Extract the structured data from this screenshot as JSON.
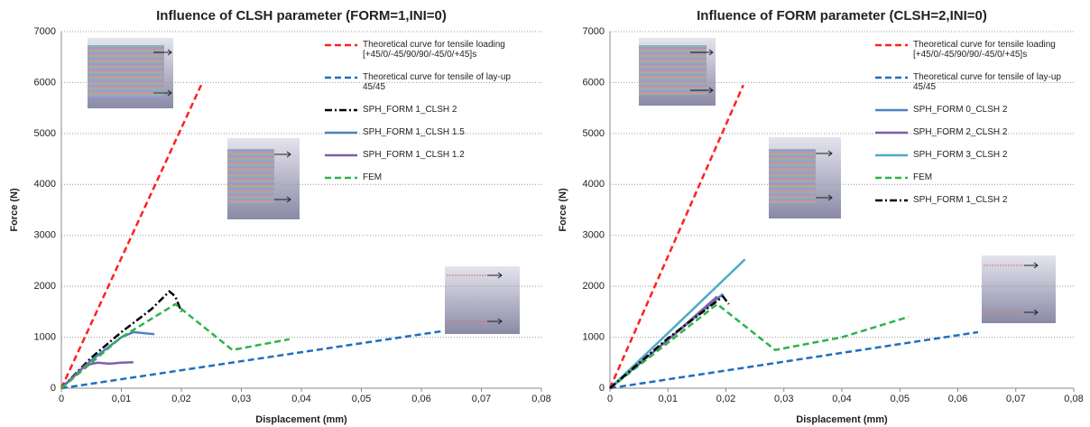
{
  "chart_data": [
    {
      "type": "line",
      "title": "Influence of CLSH parameter (FORM=1,INI=0)",
      "xlabel": "Displacement (mm)",
      "ylabel": "Force (N)",
      "xlim": [
        0,
        0.08
      ],
      "ylim": [
        0,
        7000
      ],
      "xticks": [
        0,
        {
          "value": 0.01,
          "label": "0,01"
        },
        {
          "value": 0.02,
          "label": "0,02"
        },
        {
          "value": 0.03,
          "label": "0,03"
        },
        {
          "value": 0.04,
          "label": "0,04"
        },
        {
          "value": 0.05,
          "label": "0,05"
        },
        {
          "value": 0.06,
          "label": "0,06"
        },
        {
          "value": 0.07,
          "label": "0,07"
        },
        {
          "value": 0.08,
          "label": "0,08"
        }
      ],
      "yticks": [
        0,
        1000,
        2000,
        3000,
        4000,
        5000,
        6000,
        7000
      ],
      "grid": true,
      "series": [
        {
          "name": "Theoretical curve for tensile loading [+45/0/-45/90/90/-45/0/+45]s",
          "color": "#ff2020",
          "line_style": "dashed",
          "x": [
            0,
            0.0233
          ],
          "values": [
            0,
            5950
          ]
        },
        {
          "name": "Theoretical curve for tensile of lay-up 45/45",
          "color": "#1f6fbf",
          "line_style": "dashed",
          "x": [
            0,
            0.0635
          ],
          "values": [
            0,
            1120
          ]
        },
        {
          "name": "SPH_FORM 1_CLSH 2",
          "color": "#000000",
          "line_style": "dashdot",
          "x": [
            0,
            0.005,
            0.01,
            0.015,
            0.018,
            0.019,
            0.02
          ],
          "values": [
            0,
            600,
            1100,
            1550,
            1900,
            1800,
            1500
          ]
        },
        {
          "name": "SPH_FORM 1_CLSH 1.5",
          "color": "#4f81bd",
          "line_style": "solid",
          "x": [
            0,
            0.005,
            0.01,
            0.012,
            0.0155
          ],
          "values": [
            0,
            550,
            1000,
            1100,
            1060
          ]
        },
        {
          "name": "SPH_FORM 1_CLSH 1.2",
          "color": "#7f5fa8",
          "line_style": "solid",
          "x": [
            0,
            0.004,
            0.006,
            0.008,
            0.01,
            0.012
          ],
          "values": [
            0,
            450,
            500,
            480,
            500,
            510
          ]
        },
        {
          "name": "FEM",
          "color": "#2db34a",
          "line_style": "dashed",
          "x": [
            0,
            0.01,
            0.019,
            0.0285,
            0.033,
            0.038
          ],
          "values": [
            0,
            1000,
            1650,
            750,
            850,
            960
          ]
        }
      ]
    },
    {
      "type": "line",
      "title": "Influence of FORM parameter (CLSH=2,INI=0)",
      "xlabel": "Displacement (mm)",
      "ylabel": "Force (N)",
      "xlim": [
        0,
        0.08
      ],
      "ylim": [
        0,
        7000
      ],
      "xticks": [
        0,
        {
          "value": 0.01,
          "label": "0,01"
        },
        {
          "value": 0.02,
          "label": "0,02"
        },
        {
          "value": 0.03,
          "label": "0,03"
        },
        {
          "value": 0.04,
          "label": "0,04"
        },
        {
          "value": 0.05,
          "label": "0,05"
        },
        {
          "value": 0.06,
          "label": "0,06"
        },
        {
          "value": 0.07,
          "label": "0,07"
        },
        {
          "value": 0.08,
          "label": "0,08"
        }
      ],
      "yticks": [
        0,
        1000,
        2000,
        3000,
        4000,
        5000,
        6000,
        7000
      ],
      "grid": true,
      "series": [
        {
          "name": "Theoretical curve for tensile loading [+45/0/-45/90/90/-45/0/+45]s",
          "color": "#ff2020",
          "line_style": "dashed",
          "x": [
            0,
            0.023
          ],
          "values": [
            0,
            5950
          ]
        },
        {
          "name": "Theoretical curve for tensile of lay-up 45/45",
          "color": "#1f6fbf",
          "line_style": "dashed",
          "x": [
            0,
            0.0635
          ],
          "values": [
            0,
            1100
          ]
        },
        {
          "name": "SPH_FORM 0_CLSH 2",
          "color": "#4f81bd",
          "line_style": "solid",
          "x": [
            0,
            0.01,
            0.0195
          ],
          "values": [
            0,
            950,
            1850
          ]
        },
        {
          "name": "SPH_FORM 2_CLSH 2",
          "color": "#7f5fa8",
          "line_style": "solid",
          "x": [
            0,
            0.01,
            0.0185
          ],
          "values": [
            0,
            950,
            1800
          ]
        },
        {
          "name": "SPH_FORM 3_CLSH 2",
          "color": "#4bacc6",
          "line_style": "solid",
          "x": [
            0,
            0.01,
            0.0233
          ],
          "values": [
            0,
            1080,
            2530
          ]
        },
        {
          "name": "FEM",
          "color": "#2db34a",
          "line_style": "dashed",
          "x": [
            0,
            0.0185,
            0.0285,
            0.04,
            0.0515
          ],
          "values": [
            0,
            1650,
            750,
            1000,
            1400
          ]
        },
        {
          "name": "SPH_FORM 1_CLSH 2",
          "color": "#000000",
          "line_style": "dashdot",
          "x": [
            0,
            0.01,
            0.0195,
            0.0205
          ],
          "values": [
            0,
            980,
            1800,
            1650
          ]
        }
      ]
    }
  ]
}
